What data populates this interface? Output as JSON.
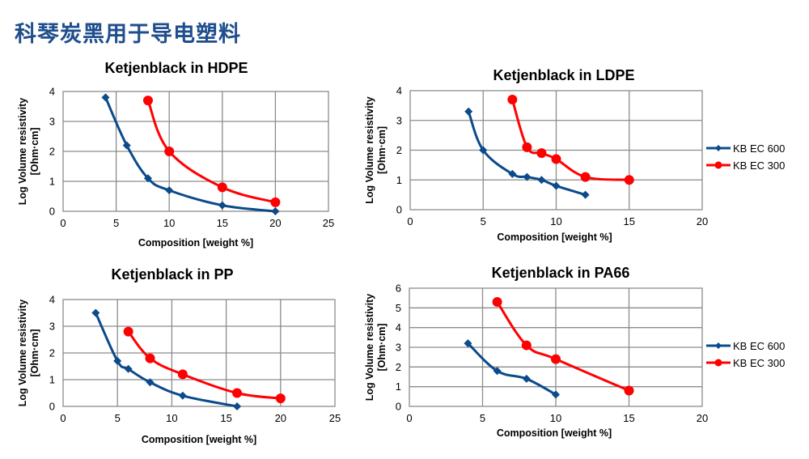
{
  "page": {
    "title": "科琴炭黑用于导电塑料"
  },
  "chart_data": [
    {
      "id": "hdpe",
      "type": "line",
      "title": "Ketjenblack in HDPE",
      "xlabel": "Composition [weight %]",
      "ylabel": [
        "Log Volume resistivity",
        "[Ohm·cm]"
      ],
      "xlim": [
        0,
        25
      ],
      "ylim": [
        0,
        4
      ],
      "xticks": [
        0,
        5,
        10,
        15,
        20,
        25
      ],
      "yticks": [
        0,
        1,
        2,
        3,
        4
      ],
      "grid": true,
      "legend": "none",
      "series": [
        {
          "name": "KB EC 600",
          "color": "#0b4a8b",
          "marker": "diamond",
          "x": [
            4,
            6,
            8,
            10,
            15,
            20
          ],
          "y": [
            3.8,
            2.2,
            1.1,
            0.7,
            0.2,
            0.0
          ]
        },
        {
          "name": "KB EC 300",
          "color": "#ff0000",
          "marker": "circle",
          "x": [
            8,
            10,
            15,
            20
          ],
          "y": [
            3.7,
            2.0,
            0.8,
            0.3
          ]
        }
      ]
    },
    {
      "id": "ldpe",
      "type": "line",
      "title": "Ketjenblack in LDPE",
      "xlabel": "Composition [weight %]",
      "ylabel": [
        "Log Volume resistivity",
        "[Ohm·cm]"
      ],
      "xlim": [
        0,
        20
      ],
      "ylim": [
        0,
        4
      ],
      "xticks": [
        0,
        5,
        10,
        15,
        20
      ],
      "yticks": [
        0,
        1,
        2,
        3,
        4
      ],
      "grid": true,
      "legend": "right",
      "series": [
        {
          "name": "KB EC 600",
          "color": "#0b4a8b",
          "marker": "diamond",
          "x": [
            4,
            5,
            7,
            8,
            9,
            10,
            12
          ],
          "y": [
            3.3,
            2.0,
            1.2,
            1.1,
            1.0,
            0.8,
            0.5
          ]
        },
        {
          "name": "KB EC 300",
          "color": "#ff0000",
          "marker": "circle",
          "x": [
            7,
            8,
            9,
            10,
            12,
            15
          ],
          "y": [
            3.7,
            2.1,
            1.9,
            1.7,
            1.1,
            1.0
          ]
        }
      ]
    },
    {
      "id": "pp",
      "type": "line",
      "title": "Ketjenblack in PP",
      "xlabel": "Composition [weight %]",
      "ylabel": [
        "Log Volume resistivity",
        "[Ohm·cm]"
      ],
      "xlim": [
        0,
        25
      ],
      "ylim": [
        0,
        4
      ],
      "xticks": [
        0,
        5,
        10,
        15,
        20,
        25
      ],
      "yticks": [
        0,
        1,
        2,
        3,
        4
      ],
      "grid": true,
      "legend": "none",
      "series": [
        {
          "name": "KB EC 600",
          "color": "#0b4a8b",
          "marker": "diamond",
          "x": [
            3,
            5,
            6,
            8,
            11,
            16
          ],
          "y": [
            3.5,
            1.7,
            1.4,
            0.9,
            0.4,
            0.0
          ]
        },
        {
          "name": "KB EC 300",
          "color": "#ff0000",
          "marker": "circle",
          "x": [
            6,
            8,
            11,
            16,
            20
          ],
          "y": [
            2.8,
            1.8,
            1.2,
            0.5,
            0.3
          ]
        }
      ]
    },
    {
      "id": "pa66",
      "type": "line",
      "title": "Ketjenblack in PA66",
      "xlabel": "Composition [weight %]",
      "ylabel": [
        "Log Volume resistivity",
        "[Ohm·cm]"
      ],
      "xlim": [
        0,
        20
      ],
      "ylim": [
        0,
        6
      ],
      "xticks": [
        0,
        5,
        10,
        15,
        20
      ],
      "yticks": [
        0,
        1,
        2,
        3,
        4,
        5,
        6
      ],
      "grid": true,
      "legend": "right",
      "series": [
        {
          "name": "KB EC 600",
          "color": "#0b4a8b",
          "marker": "diamond",
          "x": [
            4,
            6,
            8,
            10
          ],
          "y": [
            3.2,
            1.8,
            1.4,
            0.6
          ]
        },
        {
          "name": "KB EC 300",
          "color": "#ff0000",
          "marker": "circle",
          "x": [
            6,
            8,
            10,
            15
          ],
          "y": [
            5.3,
            3.1,
            2.4,
            0.8
          ]
        }
      ]
    }
  ]
}
